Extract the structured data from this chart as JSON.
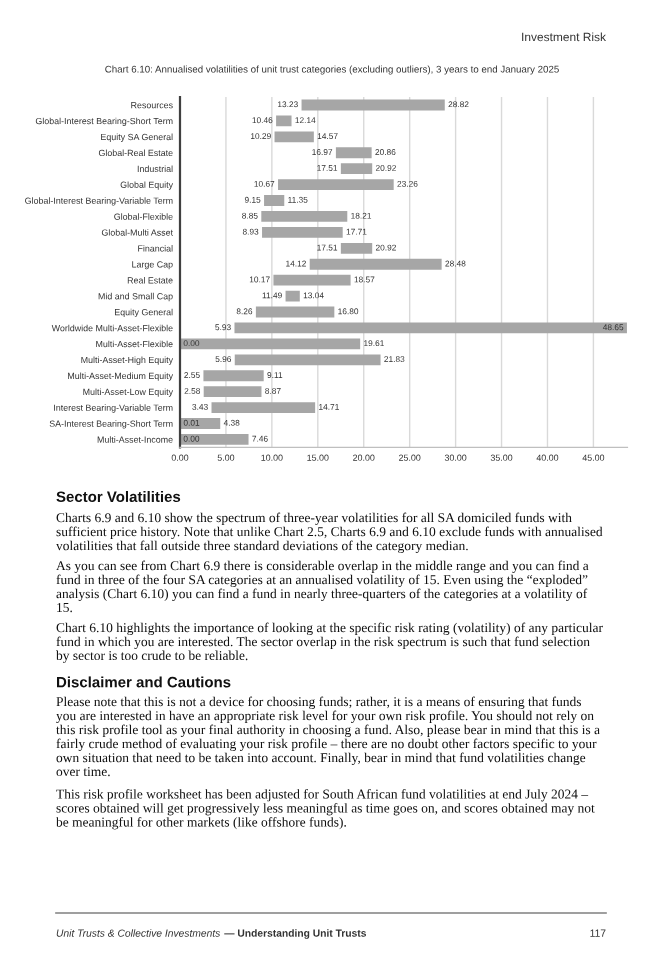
{
  "chart_data": {
    "type": "bar",
    "orientation": "horizontal",
    "title": "Chart 6.10: Annualised volatilities of unit trust categories (excluding outliers), 3 years to end January 2025",
    "categories": [
      "Resources",
      "Global-Interest Bearing-Short Term",
      "Equity SA General",
      "Global-Real Estate",
      "Industrial",
      "Global Equity",
      "Global-Interest Bearing-Variable Term",
      "Global-Flexible",
      "Global-Multi Asset",
      "Financial",
      "Large Cap",
      "Real Estate",
      "Mid and Small Cap",
      "Equity General",
      "Worldwide Multi-Asset-Flexible",
      "Multi-Asset-Flexible",
      "Multi-Asset-High Equity",
      "Multi-Asset-Medium Equity",
      "Multi-Asset-Low Equity",
      "Interest Bearing-Variable Term",
      "SA-Interest Bearing-Short Term",
      "Multi-Asset-Income"
    ],
    "base": [
      13.23,
      10.46,
      10.29,
      16.97,
      17.51,
      10.67,
      9.15,
      8.85,
      8.93,
      17.51,
      14.12,
      10.17,
      11.49,
      8.26,
      5.93,
      0.0,
      5.96,
      2.55,
      2.58,
      3.43,
      0.01,
      0.0
    ],
    "values": [
      15.59,
      1.68,
      4.28,
      3.89,
      3.41,
      12.59,
      2.2,
      9.36,
      8.78,
      3.41,
      14.36,
      8.4,
      1.55,
      8.54,
      42.72,
      19.61,
      15.87,
      6.56,
      6.29,
      11.28,
      4.37,
      7.46
    ],
    "color": "#a6a6a6",
    "xlim": [
      0,
      48.7
    ],
    "xticks": [
      {
        "value": 0,
        "label": "0.00"
      },
      {
        "value": 5,
        "label": "5.00"
      },
      {
        "value": 10,
        "label": "10.00"
      },
      {
        "value": 15,
        "label": "15.00"
      },
      {
        "value": 20,
        "label": "20.00"
      },
      {
        "value": 25,
        "label": "25.00"
      },
      {
        "value": 30,
        "label": "30.00"
      },
      {
        "value": 35,
        "label": "35.00"
      },
      {
        "value": 40,
        "label": "40.00"
      },
      {
        "value": 45,
        "label": "45.00"
      }
    ],
    "grid": "x",
    "annotations": [
      "Investment Risk",
      "Sector Volatilities",
      "Charts 6.9 and 6.10 show the spectrum of three-year volatilities for all SA domiciled funds with sufficient price history. Note that unlike Chart 2.5, Charts 6.9 and 6.10 exclude funds with annualised volatilities that fall outside three standard deviations of the category median.",
      "As you can see from Chart 6.9 there is considerable overlap in the middle range and you can find a fund in three of the four SA categories at an annualised volatility of 15. Even using the “exploded” analysis (Chart 6.10) you can find a fund in nearly three-quarters of the categories at a volatility of 15.",
      "Chart 6.10 highlights the importance of looking at the specific risk rating (volatility) of any particular fund in which you are interested. The sector overlap in the risk spectrum is such that fund selection by sector is too crude to be reliable.",
      "Disclaimer and Cautions",
      "Please note that this is not a device for choosing funds; rather, it is a means of ensuring that funds you are interested in have an appropriate risk level for your own risk profile. You should not rely on this risk profile tool as your final authority in choosing a fund. Also, please bear in mind that this is a fairly crude method of evaluating your risk profile – there are no doubt other factors specific to your own situation that need to be taken into account. Finally, bear in mind that fund volatilities change over time.",
      "This risk profile worksheet has been adjusted for South African fund volatilities at end July 2024 – scores obtained will get progressively less meaningful as time goes on, and scores obtained may not be meaningful for other markets (like offshore funds).",
      "Unit Trusts & Collective Investments",
      "— Understanding Unit Trusts",
      "117",
      {
        "text": "13.23",
        "x": 13.23,
        "y": "Resources"
      },
      {
        "text": "28.82",
        "x": 28.82,
        "y": "Resources"
      },
      {
        "text": "10.46",
        "x": 10.46,
        "y": "Global-Interest Bearing-Short Term"
      },
      {
        "text": "12.14",
        "x": 12.14,
        "y": "Global-Interest Bearing-Short Term"
      },
      {
        "text": "10.29",
        "x": 10.29,
        "y": "Equity SA General"
      },
      {
        "text": "14.57",
        "x": 14.57,
        "y": "Equity SA General"
      },
      {
        "text": "16.97",
        "x": 16.97,
        "y": "Global-Real Estate"
      },
      {
        "text": "20.86",
        "x": 20.86,
        "y": "Global-Real Estate"
      },
      {
        "text": "17.51",
        "x": 17.51,
        "y": "Industrial"
      },
      {
        "text": "20.92",
        "x": 20.92,
        "y": "Industrial"
      },
      {
        "text": "10.67",
        "x": 10.67,
        "y": "Global Equity"
      },
      {
        "text": "23.26",
        "x": 23.26,
        "y": "Global Equity"
      },
      {
        "text": "9.15",
        "x": 9.15,
        "y": "Global-Interest Bearing-Variable Term"
      },
      {
        "text": "11.35",
        "x": 11.35,
        "y": "Global-Interest Bearing-Variable Term"
      },
      {
        "text": "8.85",
        "x": 8.85,
        "y": "Global-Flexible"
      },
      {
        "text": "18.21",
        "x": 18.21,
        "y": "Global-Flexible"
      },
      {
        "text": "8.93",
        "x": 8.93,
        "y": "Global-Multi Asset"
      },
      {
        "text": "17.71",
        "x": 17.71,
        "y": "Global-Multi Asset"
      },
      {
        "text": "17.51",
        "x": 17.51,
        "y": "Financial"
      },
      {
        "text": "20.92",
        "x": 20.92,
        "y": "Financial"
      },
      {
        "text": "14.12",
        "x": 14.12,
        "y": "Large Cap"
      },
      {
        "text": "28.48",
        "x": 28.48,
        "y": "Large Cap"
      },
      {
        "text": "10.17",
        "x": 10.17,
        "y": "Real Estate"
      },
      {
        "text": "18.57",
        "x": 18.57,
        "y": "Real Estate"
      },
      {
        "text": "11.49",
        "x": 11.49,
        "y": "Mid and Small Cap"
      },
      {
        "text": "13.04",
        "x": 13.04,
        "y": "Mid and Small Cap"
      },
      {
        "text": "8.26",
        "x": 8.26,
        "y": "Equity General"
      },
      {
        "text": "16.80",
        "x": 16.8,
        "y": "Equity General"
      },
      {
        "text": "5.93",
        "x": 5.93,
        "y": "Worldwide Multi-Asset-Flexible"
      },
      {
        "text": "48.65",
        "x": 48.65,
        "y": "Worldwide Multi-Asset-Flexible"
      },
      {
        "text": "0.00",
        "x": 0.0,
        "y": "Multi-Asset-Flexible"
      },
      {
        "text": "19.61",
        "x": 19.61,
        "y": "Multi-Asset-Flexible"
      },
      {
        "text": "5.96",
        "x": 5.96,
        "y": "Multi-Asset-High Equity"
      },
      {
        "text": "21.83",
        "x": 21.83,
        "y": "Multi-Asset-High Equity"
      },
      {
        "text": "2.55",
        "x": 2.55,
        "y": "Multi-Asset-Medium Equity"
      },
      {
        "text": "9.11",
        "x": 9.11,
        "y": "Multi-Asset-Medium Equity"
      },
      {
        "text": "2.58",
        "x": 2.58,
        "y": "Multi-Asset-Low Equity"
      },
      {
        "text": "8.87",
        "x": 8.87,
        "y": "Multi-Asset-Low Equity"
      },
      {
        "text": "3.43",
        "x": 3.43,
        "y": "Interest Bearing-Variable Term"
      },
      {
        "text": "14.71",
        "x": 14.71,
        "y": "Interest Bearing-Variable Term"
      },
      {
        "text": "0.01",
        "x": 0.01,
        "y": "SA-Interest Bearing-Short Term"
      },
      {
        "text": "4.38",
        "x": 4.38,
        "y": "SA-Interest Bearing-Short Term"
      },
      {
        "text": "0.00",
        "x": 0.0,
        "y": "Multi-Asset-Income"
      },
      {
        "text": "7.46",
        "x": 7.46,
        "y": "Multi-Asset-Income"
      }
    ]
  }
}
